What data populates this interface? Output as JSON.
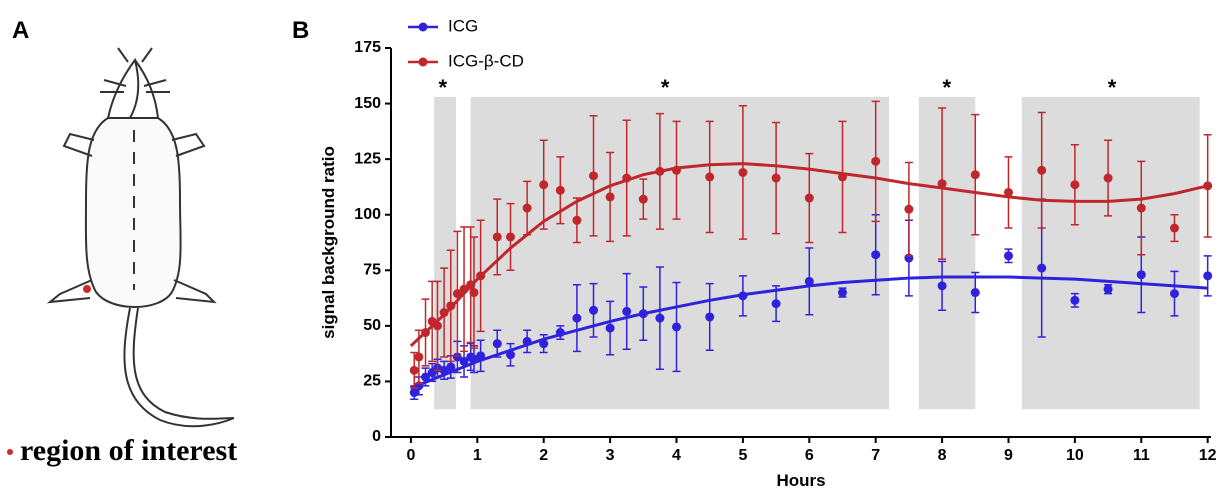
{
  "panel_a": {
    "label": "A",
    "caption": "region of interest"
  },
  "chart_data": {
    "type": "scatter",
    "panel_label": "B",
    "x_label": "Hours",
    "y_label": "signal background ratio",
    "xlim": [
      -0.3,
      12.05
    ],
    "ylim": [
      0,
      175
    ],
    "xticks": [
      0,
      1,
      2,
      3,
      4,
      5,
      6,
      7,
      8,
      9,
      10,
      11,
      12
    ],
    "yticks": [
      0,
      25,
      50,
      75,
      100,
      125,
      150,
      175
    ],
    "x": [
      0.05,
      0.12,
      0.22,
      0.32,
      0.4,
      0.5,
      0.6,
      0.7,
      0.8,
      0.9,
      0.95,
      1.05,
      1.3,
      1.5,
      1.75,
      2,
      2.25,
      2.5,
      2.75,
      3,
      3.25,
      3.5,
      3.75,
      4,
      4.5,
      5,
      5.5,
      6,
      6.5,
      7,
      7.5,
      8,
      8.5,
      9,
      9.5,
      10,
      10.5,
      11,
      11.5,
      12
    ],
    "fit_x": [
      0,
      0.5,
      1,
      1.5,
      2,
      2.5,
      3,
      3.5,
      4,
      4.5,
      5,
      5.5,
      6,
      6.5,
      7,
      7.5,
      8,
      8.5,
      9,
      9.5,
      10,
      10.5,
      11,
      11.5,
      12
    ],
    "series": [
      {
        "name": "ICG",
        "color": "#2e22dc",
        "values": [
          20,
          23,
          27,
          29,
          31,
          30,
          31.5,
          36,
          34,
          36,
          35,
          36.5,
          42,
          37,
          43,
          42,
          47,
          53.5,
          57,
          49,
          56.5,
          55.5,
          53.5,
          49.5,
          54,
          63.5,
          60,
          70,
          65,
          82,
          80.5,
          68,
          65,
          81.5,
          76,
          61.5,
          66.5,
          73,
          64.5,
          72.5
        ],
        "errors": [
          3,
          4,
          4,
          4,
          4,
          4,
          5,
          7,
          7,
          6,
          6,
          7,
          6,
          5,
          5,
          4,
          3,
          15,
          12,
          12,
          17,
          12,
          23,
          20,
          15,
          9,
          8,
          15,
          2,
          18,
          17,
          11,
          9,
          3,
          31,
          3,
          2,
          17,
          10,
          9
        ],
        "fit_values": [
          22,
          28,
          34,
          39,
          44,
          48,
          52,
          55.5,
          58.5,
          61.5,
          64,
          66,
          68,
          69.5,
          70.5,
          71.5,
          72,
          72,
          72,
          71.5,
          71,
          70,
          69,
          68,
          67
        ]
      },
      {
        "name": "ICG-β-CD",
        "color": "#c0272d",
        "values": [
          30,
          36,
          47,
          52,
          50,
          56,
          59,
          64.5,
          66.5,
          68.5,
          65,
          72.5,
          90,
          90,
          103,
          113.5,
          111,
          97.5,
          117.5,
          108,
          116.5,
          107,
          119.5,
          120,
          117,
          119,
          116.5,
          107.5,
          117,
          124,
          102.5,
          114,
          118,
          110,
          120,
          113.5,
          116.5,
          103,
          94,
          113
        ],
        "errors": [
          8,
          12,
          15,
          18,
          20,
          20,
          25,
          28,
          28,
          26,
          25,
          25,
          17,
          15,
          12,
          20,
          15,
          10,
          27,
          20,
          26,
          9,
          26,
          22,
          25,
          30,
          25,
          20,
          25,
          27,
          21,
          34,
          27,
          16,
          26,
          18,
          17,
          21,
          6,
          23
        ],
        "fit_values": [
          41,
          55,
          71,
          85,
          97,
          106,
          113,
          118,
          121,
          122.5,
          123,
          122,
          120.5,
          118.5,
          116.5,
          114,
          112,
          110,
          108,
          106.5,
          106,
          106,
          107,
          109.5,
          113
        ]
      }
    ],
    "regions": [
      {
        "x": [
          0.35,
          0.68
        ],
        "y": [
          12.5,
          153
        ],
        "label": "*",
        "label_x": 0.48
      },
      {
        "x": [
          0.9,
          7.2
        ],
        "y": [
          12.5,
          153
        ],
        "label": "*",
        "label_x": 3.83
      },
      {
        "x": [
          7.65,
          8.5
        ],
        "y": [
          12.5,
          153
        ],
        "label": "*",
        "label_x": 8.07
      },
      {
        "x": [
          9.2,
          11.88
        ],
        "y": [
          12.5,
          153
        ],
        "label": "*",
        "label_x": 10.56
      }
    ]
  }
}
